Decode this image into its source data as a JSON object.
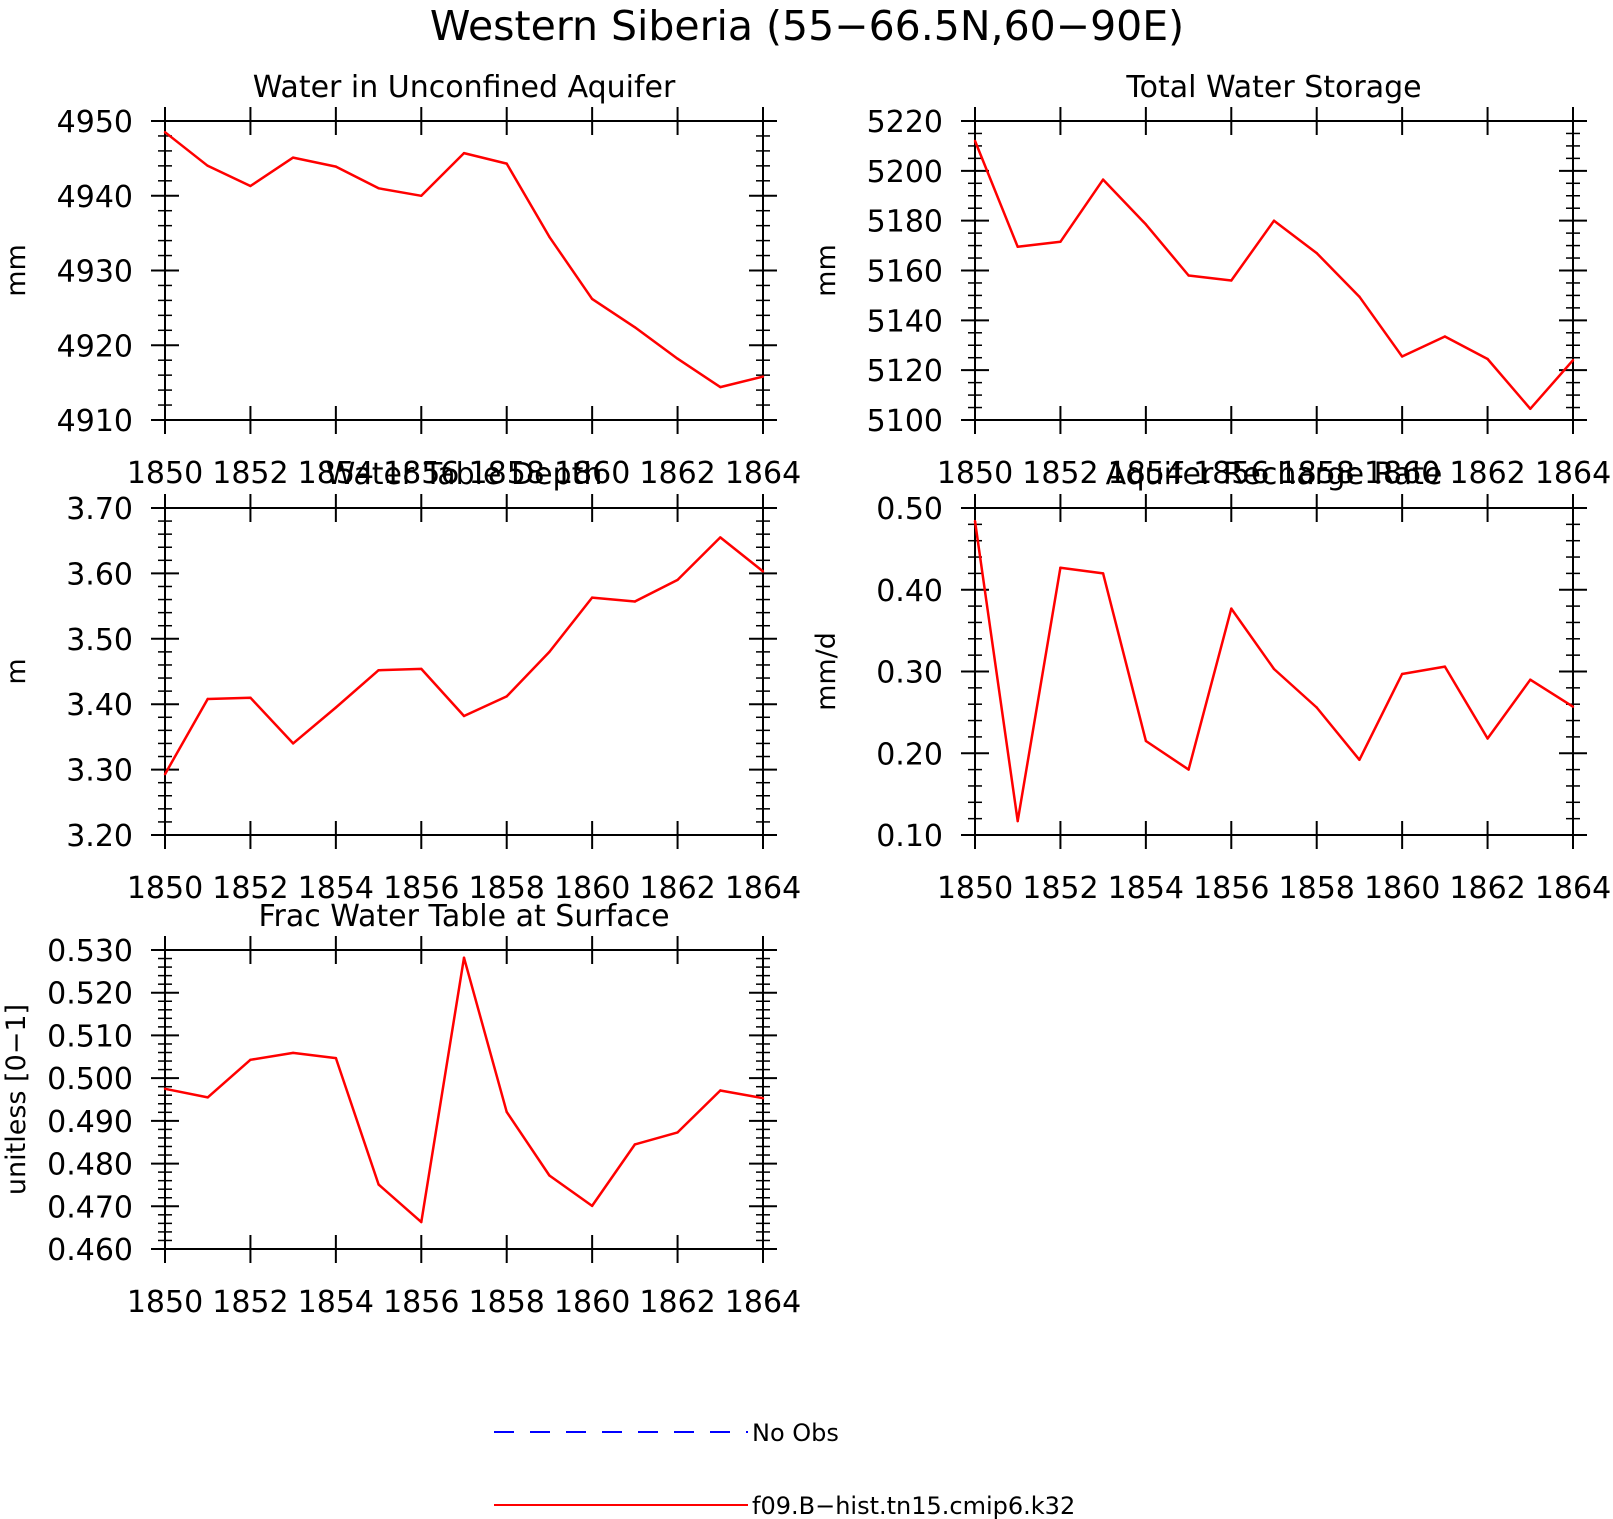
{
  "figure": {
    "title": "Western Siberia (55−66.5N,60−90E)",
    "colors": {
      "model": "#ff0000",
      "obs": "#0000ff",
      "axes": "#000000"
    }
  },
  "legend": {
    "entries": [
      {
        "label": "No Obs",
        "color": "#0000ff",
        "style": "dashed"
      },
      {
        "label": "f09.B−hist.tn15.cmip6.k32",
        "color": "#ff0000",
        "style": "solid"
      }
    ]
  },
  "chart_data": [
    {
      "type": "line",
      "title": "Water in Unconfined Aquifer",
      "xlabel": "",
      "ylabel": "mm",
      "xlim": [
        1850,
        1864
      ],
      "ylim": [
        4910,
        4950
      ],
      "xticks": [
        1850,
        1852,
        1854,
        1856,
        1858,
        1860,
        1862,
        1864
      ],
      "xtick_labels": [
        "1850",
        "1852",
        "1854",
        "1856",
        "1858",
        "1860",
        "1862",
        "1864"
      ],
      "yticks": [
        4910,
        4920,
        4930,
        4940,
        4950
      ],
      "ytick_labels": [
        "4910",
        "4920",
        "4930",
        "4940",
        "4950"
      ],
      "y_minor_step": 2,
      "x": [
        1850,
        1851,
        1852,
        1853,
        1854,
        1855,
        1856,
        1857,
        1858,
        1859,
        1860,
        1861,
        1862,
        1863,
        1864
      ],
      "series": [
        {
          "name": "f09.B−hist.tn15.cmip6.k32",
          "color": "#ff0000",
          "values": [
            4948.5,
            4944.0,
            4941.3,
            4945.1,
            4943.9,
            4941.0,
            4940.0,
            4945.7,
            4944.3,
            4934.5,
            4926.2,
            4922.4,
            4918.2,
            4914.4,
            4915.8
          ]
        }
      ]
    },
    {
      "type": "line",
      "title": "Total Water Storage",
      "xlabel": "",
      "ylabel": "mm",
      "xlim": [
        1850,
        1864
      ],
      "ylim": [
        5100,
        5220
      ],
      "xticks": [
        1850,
        1852,
        1854,
        1856,
        1858,
        1860,
        1862,
        1864
      ],
      "xtick_labels": [
        "1850",
        "1852",
        "1854",
        "1856",
        "1858",
        "1860",
        "1862",
        "1864"
      ],
      "yticks": [
        5100,
        5120,
        5140,
        5160,
        5180,
        5200,
        5220
      ],
      "ytick_labels": [
        "5100",
        "5120",
        "5140",
        "5160",
        "5180",
        "5200",
        "5220"
      ],
      "y_minor_step": 5,
      "x": [
        1850,
        1851,
        1852,
        1853,
        1854,
        1855,
        1856,
        1857,
        1858,
        1859,
        1860,
        1861,
        1862,
        1863,
        1864
      ],
      "series": [
        {
          "name": "f09.B−hist.tn15.cmip6.k32",
          "color": "#ff0000",
          "values": [
            5212,
            5169.5,
            5171.5,
            5196.5,
            5178.5,
            5158,
            5156,
            5180,
            5167,
            5149.5,
            5125.5,
            5133.5,
            5124.5,
            5104.5,
            5124
          ]
        }
      ]
    },
    {
      "type": "line",
      "title": "Water Table Depth",
      "xlabel": "",
      "ylabel": "m",
      "xlim": [
        1850,
        1864
      ],
      "ylim": [
        3.2,
        3.7
      ],
      "xticks": [
        1850,
        1852,
        1854,
        1856,
        1858,
        1860,
        1862,
        1864
      ],
      "xtick_labels": [
        "1850",
        "1852",
        "1854",
        "1856",
        "1858",
        "1860",
        "1862",
        "1864"
      ],
      "yticks": [
        3.2,
        3.3,
        3.4,
        3.5,
        3.6,
        3.7
      ],
      "ytick_labels": [
        "3.20",
        "3.30",
        "3.40",
        "3.50",
        "3.60",
        "3.70"
      ],
      "y_minor_step": 0.02,
      "x": [
        1850,
        1851,
        1852,
        1853,
        1854,
        1855,
        1856,
        1857,
        1858,
        1859,
        1860,
        1861,
        1862,
        1863,
        1864
      ],
      "series": [
        {
          "name": "f09.B−hist.tn15.cmip6.k32",
          "color": "#ff0000",
          "values": [
            3.293,
            3.408,
            3.41,
            3.34,
            3.395,
            3.452,
            3.454,
            3.382,
            3.412,
            3.48,
            3.563,
            3.557,
            3.59,
            3.655,
            3.603
          ]
        }
      ]
    },
    {
      "type": "line",
      "title": "Aquifer Recharge Rate",
      "xlabel": "",
      "ylabel": "mm/d",
      "xlim": [
        1850,
        1864
      ],
      "ylim": [
        0.1,
        0.5
      ],
      "xticks": [
        1850,
        1852,
        1854,
        1856,
        1858,
        1860,
        1862,
        1864
      ],
      "xtick_labels": [
        "1850",
        "1852",
        "1854",
        "1856",
        "1858",
        "1860",
        "1862",
        "1864"
      ],
      "yticks": [
        0.1,
        0.2,
        0.3,
        0.4,
        0.5
      ],
      "ytick_labels": [
        "0.10",
        "0.20",
        "0.30",
        "0.40",
        "0.50"
      ],
      "y_minor_step": 0.02,
      "x": [
        1850,
        1851,
        1852,
        1853,
        1854,
        1855,
        1856,
        1857,
        1858,
        1859,
        1860,
        1861,
        1862,
        1863,
        1864
      ],
      "series": [
        {
          "name": "f09.B−hist.tn15.cmip6.k32",
          "color": "#ff0000",
          "values": [
            0.484,
            0.117,
            0.427,
            0.42,
            0.215,
            0.18,
            0.377,
            0.303,
            0.256,
            0.192,
            0.297,
            0.306,
            0.218,
            0.29,
            0.257
          ]
        }
      ]
    },
    {
      "type": "line",
      "title": "Frac Water Table at Surface",
      "xlabel": "",
      "ylabel": "unitless [0−1]",
      "xlim": [
        1850,
        1864
      ],
      "ylim": [
        0.46,
        0.53
      ],
      "xticks": [
        1850,
        1852,
        1854,
        1856,
        1858,
        1860,
        1862,
        1864
      ],
      "xtick_labels": [
        "1850",
        "1852",
        "1854",
        "1856",
        "1858",
        "1860",
        "1862",
        "1864"
      ],
      "yticks": [
        0.46,
        0.47,
        0.48,
        0.49,
        0.5,
        0.51,
        0.52,
        0.53
      ],
      "ytick_labels": [
        "0.460",
        "0.470",
        "0.480",
        "0.490",
        "0.500",
        "0.510",
        "0.520",
        "0.530"
      ],
      "y_minor_step": 0.002,
      "x": [
        1850,
        1851,
        1852,
        1853,
        1854,
        1855,
        1856,
        1857,
        1858,
        1859,
        1860,
        1861,
        1862,
        1863,
        1864
      ],
      "series": [
        {
          "name": "f09.B−hist.tn15.cmip6.k32",
          "color": "#ff0000",
          "values": [
            0.4975,
            0.4955,
            0.5043,
            0.5059,
            0.5047,
            0.4751,
            0.4663,
            0.5282,
            0.4921,
            0.4772,
            0.4701,
            0.4845,
            0.4873,
            0.4971,
            0.4953
          ]
        }
      ]
    }
  ]
}
